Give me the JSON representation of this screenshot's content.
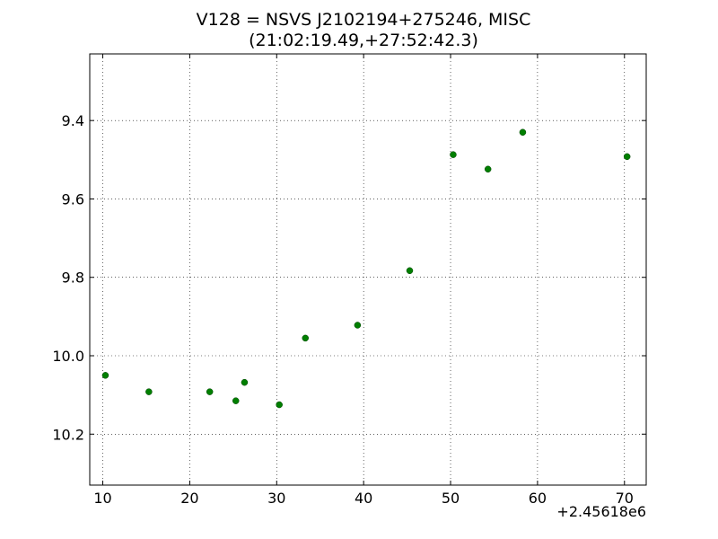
{
  "chart_data": {
    "type": "scatter",
    "title_lines": [
      "V128 = NSVS J2102194+275246, MISC",
      "(21:02:19.49,+27:52:42.3)"
    ],
    "xlabel": "",
    "ylabel": "",
    "x_offset_label": "+2.45618e6",
    "xlim": [
      8.5,
      72.5
    ],
    "ylim": [
      10.33,
      9.23
    ],
    "y_inverted": true,
    "xticks": [
      10,
      20,
      30,
      40,
      50,
      60,
      70
    ],
    "yticks": [
      9.4,
      9.6,
      9.8,
      10.0,
      10.2
    ],
    "ytick_labels": [
      "9.4",
      "9.6",
      "9.8",
      "10.0",
      "10.2"
    ],
    "grid": true,
    "marker_color": "#007f00",
    "series": [
      {
        "points": [
          [
            10.3,
            10.05
          ],
          [
            15.3,
            10.092
          ],
          [
            22.3,
            10.092
          ],
          [
            25.3,
            10.115
          ],
          [
            26.3,
            10.068
          ],
          [
            30.3,
            10.125
          ],
          [
            33.3,
            9.955
          ],
          [
            39.3,
            9.922
          ],
          [
            45.3,
            9.783
          ],
          [
            50.3,
            9.487
          ],
          [
            54.3,
            9.524
          ],
          [
            58.3,
            9.43
          ],
          [
            70.3,
            9.492
          ]
        ]
      }
    ]
  }
}
